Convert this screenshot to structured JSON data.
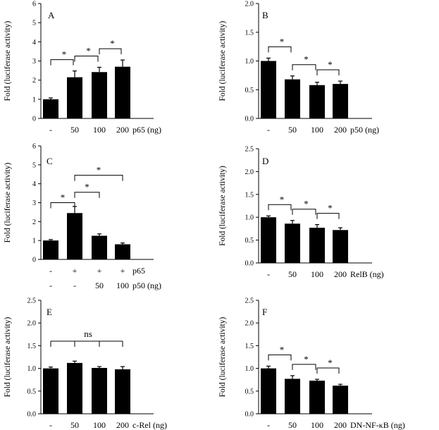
{
  "chart_data": [
    {
      "type": "bar",
      "panel": "A",
      "ylabel": "Fold (luciferase activity)",
      "ylim": [
        0,
        6
      ],
      "yticks": [
        0,
        1,
        2,
        3,
        4,
        5,
        6
      ],
      "ytick_labels": [
        "0",
        "1",
        "2",
        "3",
        "4",
        "5",
        "6"
      ],
      "categories": [
        "-",
        "50",
        "100",
        "200"
      ],
      "xlabel": "p65 (ng)",
      "values": [
        1.0,
        2.15,
        2.42,
        2.7
      ],
      "errors": [
        0.07,
        0.33,
        0.25,
        0.35
      ],
      "annotations": [
        {
          "type": "bracket",
          "from": 0,
          "to": 1,
          "label": "*"
        },
        {
          "type": "bracket",
          "from": 1,
          "to": 2,
          "label": "*"
        },
        {
          "type": "bracket",
          "from": 2,
          "to": 3,
          "label": "*"
        }
      ]
    },
    {
      "type": "bar",
      "panel": "B",
      "ylabel": "Fold (luciferase activity)",
      "ylim": [
        0,
        2
      ],
      "yticks": [
        0,
        0.5,
        1,
        1.5,
        2
      ],
      "ytick_labels": [
        "0.0",
        "0.5",
        "1.0",
        "1.5",
        "2.0"
      ],
      "categories": [
        "-",
        "50",
        "100",
        "200"
      ],
      "xlabel": "p50 (ng)",
      "values": [
        1.0,
        0.68,
        0.58,
        0.6
      ],
      "errors": [
        0.05,
        0.06,
        0.05,
        0.05
      ],
      "annotations": [
        {
          "type": "bracket",
          "from": 0,
          "to": 1,
          "label": "*"
        },
        {
          "type": "bracket",
          "from": 1,
          "to": 2,
          "label": "*"
        },
        {
          "type": "bracket",
          "from": 2,
          "to": 3,
          "label": "*"
        }
      ]
    },
    {
      "type": "bar",
      "panel": "C",
      "ylabel": "Fold (luciferase activity)",
      "ylim": [
        0,
        6
      ],
      "yticks": [
        0,
        1,
        2,
        3,
        4,
        5,
        6
      ],
      "ytick_labels": [
        "0",
        "1",
        "2",
        "3",
        "4",
        "5",
        "6"
      ],
      "categories": [
        "-",
        "+",
        "+",
        "+"
      ],
      "categories_row2": [
        "-",
        "-",
        "50",
        "100"
      ],
      "xlabel": "p65",
      "xlabel_row2": "p50 (ng)",
      "values": [
        1.0,
        2.45,
        1.25,
        0.8
      ],
      "errors": [
        0.05,
        0.35,
        0.1,
        0.07
      ],
      "annotations": [
        {
          "type": "bracket",
          "from": 0,
          "to": 1,
          "level": 3.0,
          "label": "*"
        },
        {
          "type": "bracket",
          "from": 1,
          "to": 2,
          "level": 3.55,
          "label": "*"
        },
        {
          "type": "bracket",
          "from": 1,
          "to": 3,
          "level": 4.45,
          "label": "*"
        }
      ]
    },
    {
      "type": "bar",
      "panel": "D",
      "ylabel": "Fold (luciferase activity)",
      "ylim": [
        0,
        2.5
      ],
      "yticks": [
        0,
        0.5,
        1,
        1.5,
        2,
        2.5
      ],
      "ytick_labels": [
        "0.0",
        "0.5",
        "1.0",
        "1.5",
        "2.0",
        "2.5"
      ],
      "categories": [
        "-",
        "50",
        "100",
        "200"
      ],
      "xlabel": "RelB (ng)",
      "values": [
        1.0,
        0.86,
        0.77,
        0.72
      ],
      "errors": [
        0.03,
        0.07,
        0.07,
        0.05
      ],
      "annotations": [
        {
          "type": "bracket",
          "from": 0,
          "to": 1,
          "label": "*"
        },
        {
          "type": "bracket",
          "from": 1,
          "to": 2,
          "label": "*"
        },
        {
          "type": "bracket",
          "from": 2,
          "to": 3,
          "label": "*"
        }
      ]
    },
    {
      "type": "bar",
      "panel": "E",
      "ylabel": "Fold (luciferase activity)",
      "ylim": [
        0,
        2.5
      ],
      "yticks": [
        0,
        0.5,
        1,
        1.5,
        2,
        2.5
      ],
      "ytick_labels": [
        "0.0",
        "0.5",
        "1.0",
        "1.5",
        "2.0",
        "2.5"
      ],
      "categories": [
        "-",
        "50",
        "100",
        "200"
      ],
      "xlabel": "c-Rel (ng)",
      "values": [
        1.0,
        1.12,
        1.01,
        0.98
      ],
      "errors": [
        0.03,
        0.04,
        0.03,
        0.06
      ],
      "annotations": [
        {
          "type": "comb",
          "from": 0,
          "to": 3,
          "level": 1.6,
          "label": "ns"
        }
      ]
    },
    {
      "type": "bar",
      "panel": "F",
      "ylabel": "Fold (luciferase activity)",
      "ylim": [
        0,
        2.5
      ],
      "yticks": [
        0,
        0.5,
        1,
        1.5,
        2,
        2.5
      ],
      "ytick_labels": [
        "0.0",
        "0.5",
        "1.0",
        "1.5",
        "2.0",
        "2.5"
      ],
      "categories": [
        "-",
        "50",
        "100",
        "200"
      ],
      "xlabel": "DN-NF-κB (ng)",
      "values": [
        1.0,
        0.77,
        0.73,
        0.62
      ],
      "errors": [
        0.05,
        0.07,
        0.03,
        0.03
      ],
      "annotations": [
        {
          "type": "bracket",
          "from": 0,
          "to": 1,
          "label": "*"
        },
        {
          "type": "bracket",
          "from": 1,
          "to": 2,
          "label": "*"
        },
        {
          "type": "bracket",
          "from": 2,
          "to": 3,
          "label": "*"
        }
      ]
    }
  ]
}
